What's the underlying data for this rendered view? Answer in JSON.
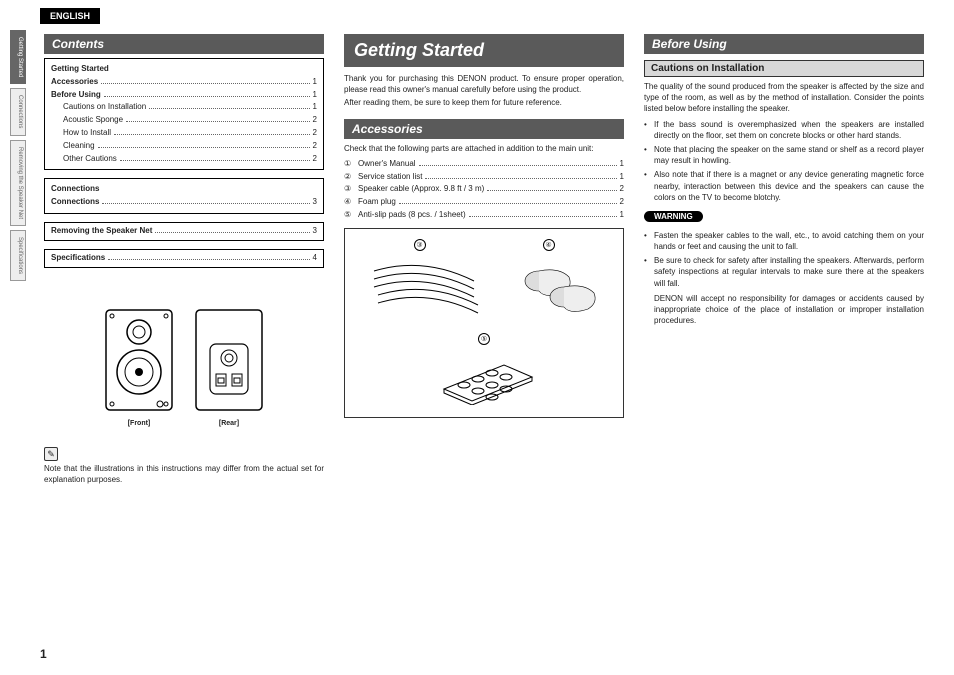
{
  "language_tab": "ENGLISH",
  "side_tabs": [
    "Getting Started",
    "Connections",
    "Removing the Speaker Net",
    "Specifications"
  ],
  "page_number": "1",
  "col1": {
    "contents_title": "Contents",
    "section1_title": "Getting Started",
    "toc1": [
      {
        "label": "Accessories",
        "page": "1",
        "bold": true,
        "indent": false
      },
      {
        "label": "Before Using",
        "page": "1",
        "bold": true,
        "indent": false
      },
      {
        "label": "Cautions on Installation",
        "page": "1",
        "bold": false,
        "indent": true
      },
      {
        "label": "Acoustic Sponge",
        "page": "2",
        "bold": false,
        "indent": true
      },
      {
        "label": "How to Install",
        "page": "2",
        "bold": false,
        "indent": true
      },
      {
        "label": "Cleaning",
        "page": "2",
        "bold": false,
        "indent": true
      },
      {
        "label": "Other Cautions",
        "page": "2",
        "bold": false,
        "indent": true
      }
    ],
    "section2_title": "Connections",
    "toc2": [
      {
        "label": "Connections",
        "page": "3",
        "bold": true,
        "indent": false
      }
    ],
    "toc3": {
      "label": "Removing the Speaker Net",
      "page": "3"
    },
    "toc4": {
      "label": "Specifications",
      "page": "4"
    },
    "fig_front": "[Front]",
    "fig_rear": "[Rear]",
    "note": "Note that the illustrations in this instructions may differ from the actual set for explanation purposes."
  },
  "col2": {
    "title": "Getting Started",
    "intro1": "Thank you for purchasing this DENON product. To ensure proper operation, please read this owner's manual carefully before using the product.",
    "intro2": "After reading them, be sure to keep them for future reference.",
    "accessories_title": "Accessories",
    "accessories_intro": "Check that the following parts are attached in addition to the main unit:",
    "items": [
      {
        "n": "①",
        "t": "Owner's Manual",
        "q": "1"
      },
      {
        "n": "②",
        "t": "Service station list",
        "q": "1"
      },
      {
        "n": "③",
        "t": "Speaker cable (Approx. 9.8 ft / 3 m)",
        "q": "2"
      },
      {
        "n": "④",
        "t": "Foam plug",
        "q": "2"
      },
      {
        "n": "⑤",
        "t": "Anti-slip pads (8 pcs. / 1sheet)",
        "q": "1"
      }
    ],
    "illus_labels": {
      "a": "③",
      "b": "④",
      "c": "⑤"
    }
  },
  "col3": {
    "title": "Before Using",
    "sub": "Cautions on Installation",
    "intro": "The quality of the sound produced from the speaker is affected by the size and type of the room, as well as by the method of installation. Consider the points listed below before installing the speaker.",
    "bullets1": [
      "If the bass sound is overemphasized when the speakers are installed directly on the floor, set them on concrete blocks or other hard stands.",
      "Note that placing the speaker on the same stand or shelf as a record player may result in howling.",
      "Also note that if there is a magnet or any device generating magnetic force nearby, interaction between this device and the speakers can cause the colors on the TV to become blotchy."
    ],
    "warning_label": "WARNING",
    "bullets2": [
      "Fasten the speaker cables to the wall, etc., to avoid catching them on your hands or feet and causing the unit to fall.",
      "Be sure to check for safety after installing the speakers. Afterwards, perform safety inspections at regular intervals to make sure there at the speakers will fall."
    ],
    "disclaimer": "DENON will accept no responsibility for damages or accidents caused by inappropriate choice of the place of installation or improper installation procedures."
  }
}
